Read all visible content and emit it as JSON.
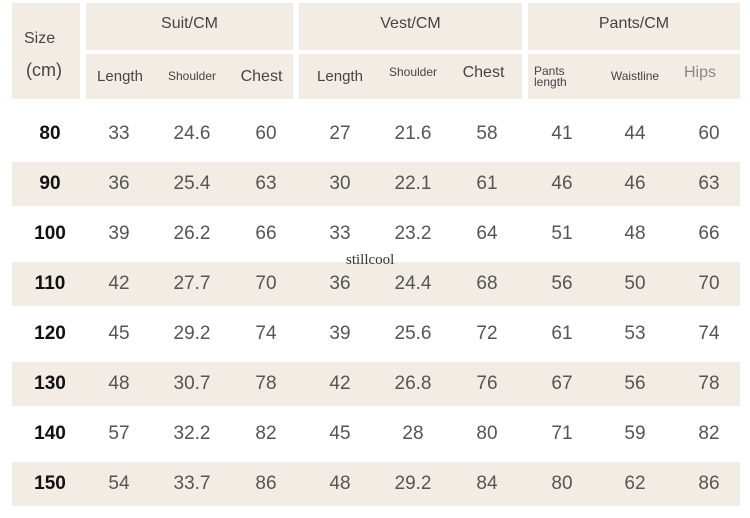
{
  "size_header": {
    "line1": "Size",
    "line2": "(cm)"
  },
  "groups": {
    "suit": {
      "title": "Suit/CM",
      "columns": [
        "Length",
        "Shoulder",
        "Chest"
      ]
    },
    "vest": {
      "title": "Vest/CM",
      "columns": [
        "Length",
        "Shoulder",
        "Chest"
      ]
    },
    "pants": {
      "title": "Pants/CM",
      "columns": [
        "Pants length",
        "Waistline",
        "Hips"
      ]
    }
  },
  "rows": [
    {
      "size": "80",
      "values": [
        "33",
        "24.6",
        "60",
        "27",
        "21.6",
        "58",
        "41",
        "44",
        "60"
      ]
    },
    {
      "size": "90",
      "values": [
        "36",
        "25.4",
        "63",
        "30",
        "22.1",
        "61",
        "46",
        "46",
        "63"
      ]
    },
    {
      "size": "100",
      "values": [
        "39",
        "26.2",
        "66",
        "33",
        "23.2",
        "64",
        "51",
        "48",
        "66"
      ]
    },
    {
      "size": "110",
      "values": [
        "42",
        "27.7",
        "70",
        "36",
        "24.4",
        "68",
        "56",
        "50",
        "70"
      ]
    },
    {
      "size": "120",
      "values": [
        "45",
        "29.2",
        "74",
        "39",
        "25.6",
        "72",
        "61",
        "53",
        "74"
      ]
    },
    {
      "size": "130",
      "values": [
        "48",
        "30.7",
        "78",
        "42",
        "26.8",
        "76",
        "67",
        "56",
        "78"
      ]
    },
    {
      "size": "140",
      "values": [
        "57",
        "32.2",
        "82",
        "45",
        "28",
        "80",
        "71",
        "59",
        "82"
      ]
    },
    {
      "size": "150",
      "values": [
        "54",
        "33.7",
        "86",
        "48",
        "29.2",
        "84",
        "80",
        "62",
        "86"
      ]
    }
  ],
  "watermark": "stillcool",
  "colors": {
    "header_bg": "#f3ece5",
    "shaded_row_bg": "#f3ece5"
  }
}
